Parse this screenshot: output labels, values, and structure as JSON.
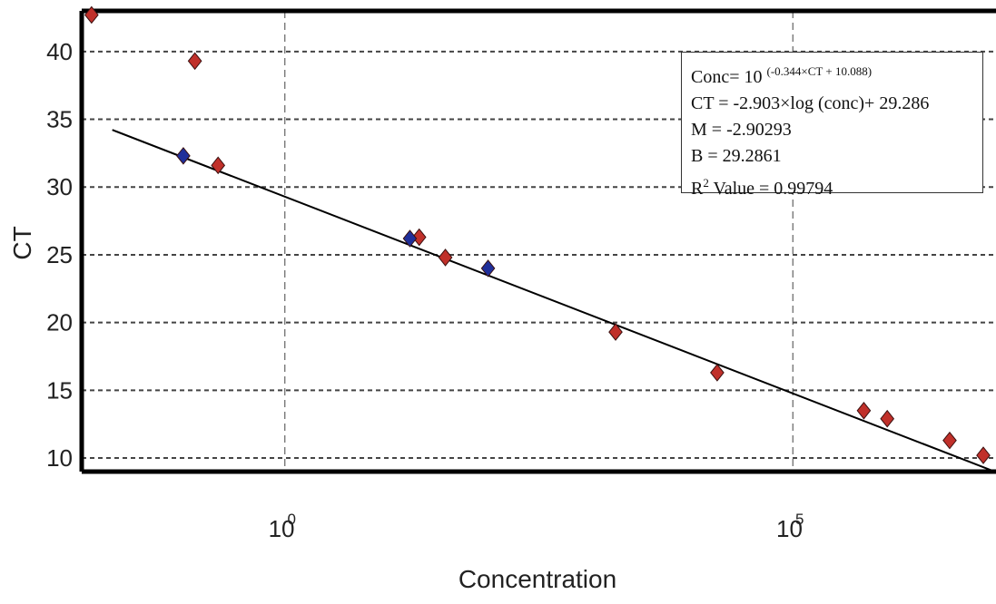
{
  "chart_data": {
    "type": "scatter",
    "xlabel": "Concentration",
    "ylabel": "CT",
    "x_scale": "log",
    "xlim": [
      0.01,
      10000000
    ],
    "ylim": [
      9,
      43
    ],
    "x_ticks": [
      {
        "value": 1,
        "base": "10",
        "exp": "0"
      },
      {
        "value": 100000,
        "base": "10",
        "exp": "5"
      }
    ],
    "y_ticks": [
      10,
      15,
      20,
      25,
      30,
      35,
      40
    ],
    "grid": true,
    "fit_line": {
      "slope": -2.903,
      "intercept": 29.286,
      "x_range": [
        0.01,
        10000000
      ]
    },
    "series": [
      {
        "color": "#c0302a",
        "points": [
          {
            "x": 0.0125,
            "y": 42.7
          },
          {
            "x": 0.13,
            "y": 39.3
          },
          {
            "x": 0.22,
            "y": 31.6
          },
          {
            "x": 21,
            "y": 26.3
          },
          {
            "x": 38,
            "y": 24.8
          },
          {
            "x": 1800,
            "y": 19.3
          },
          {
            "x": 18000,
            "y": 16.3
          },
          {
            "x": 500000,
            "y": 13.5
          },
          {
            "x": 850000,
            "y": 12.9
          },
          {
            "x": 3500000,
            "y": 11.3
          },
          {
            "x": 7500000,
            "y": 10.2
          }
        ]
      },
      {
        "color": "#1f2f9a",
        "points": [
          {
            "x": 0.1,
            "y": 32.3
          },
          {
            "x": 17,
            "y": 26.2
          },
          {
            "x": 100,
            "y": 24.0
          }
        ]
      }
    ]
  },
  "equation": {
    "conc_prefix": "Conc= 10",
    "conc_exponent": "(-0.344×CT + 10.088)",
    "ct_line": "CT = -2.903×log (conc)+ 29.286",
    "m_line": "M = -2.90293",
    "b_line": "B = 29.2861",
    "r2_prefix": "R",
    "r2_exponent": "2",
    "r2_suffix": " Value = 0.99794"
  }
}
